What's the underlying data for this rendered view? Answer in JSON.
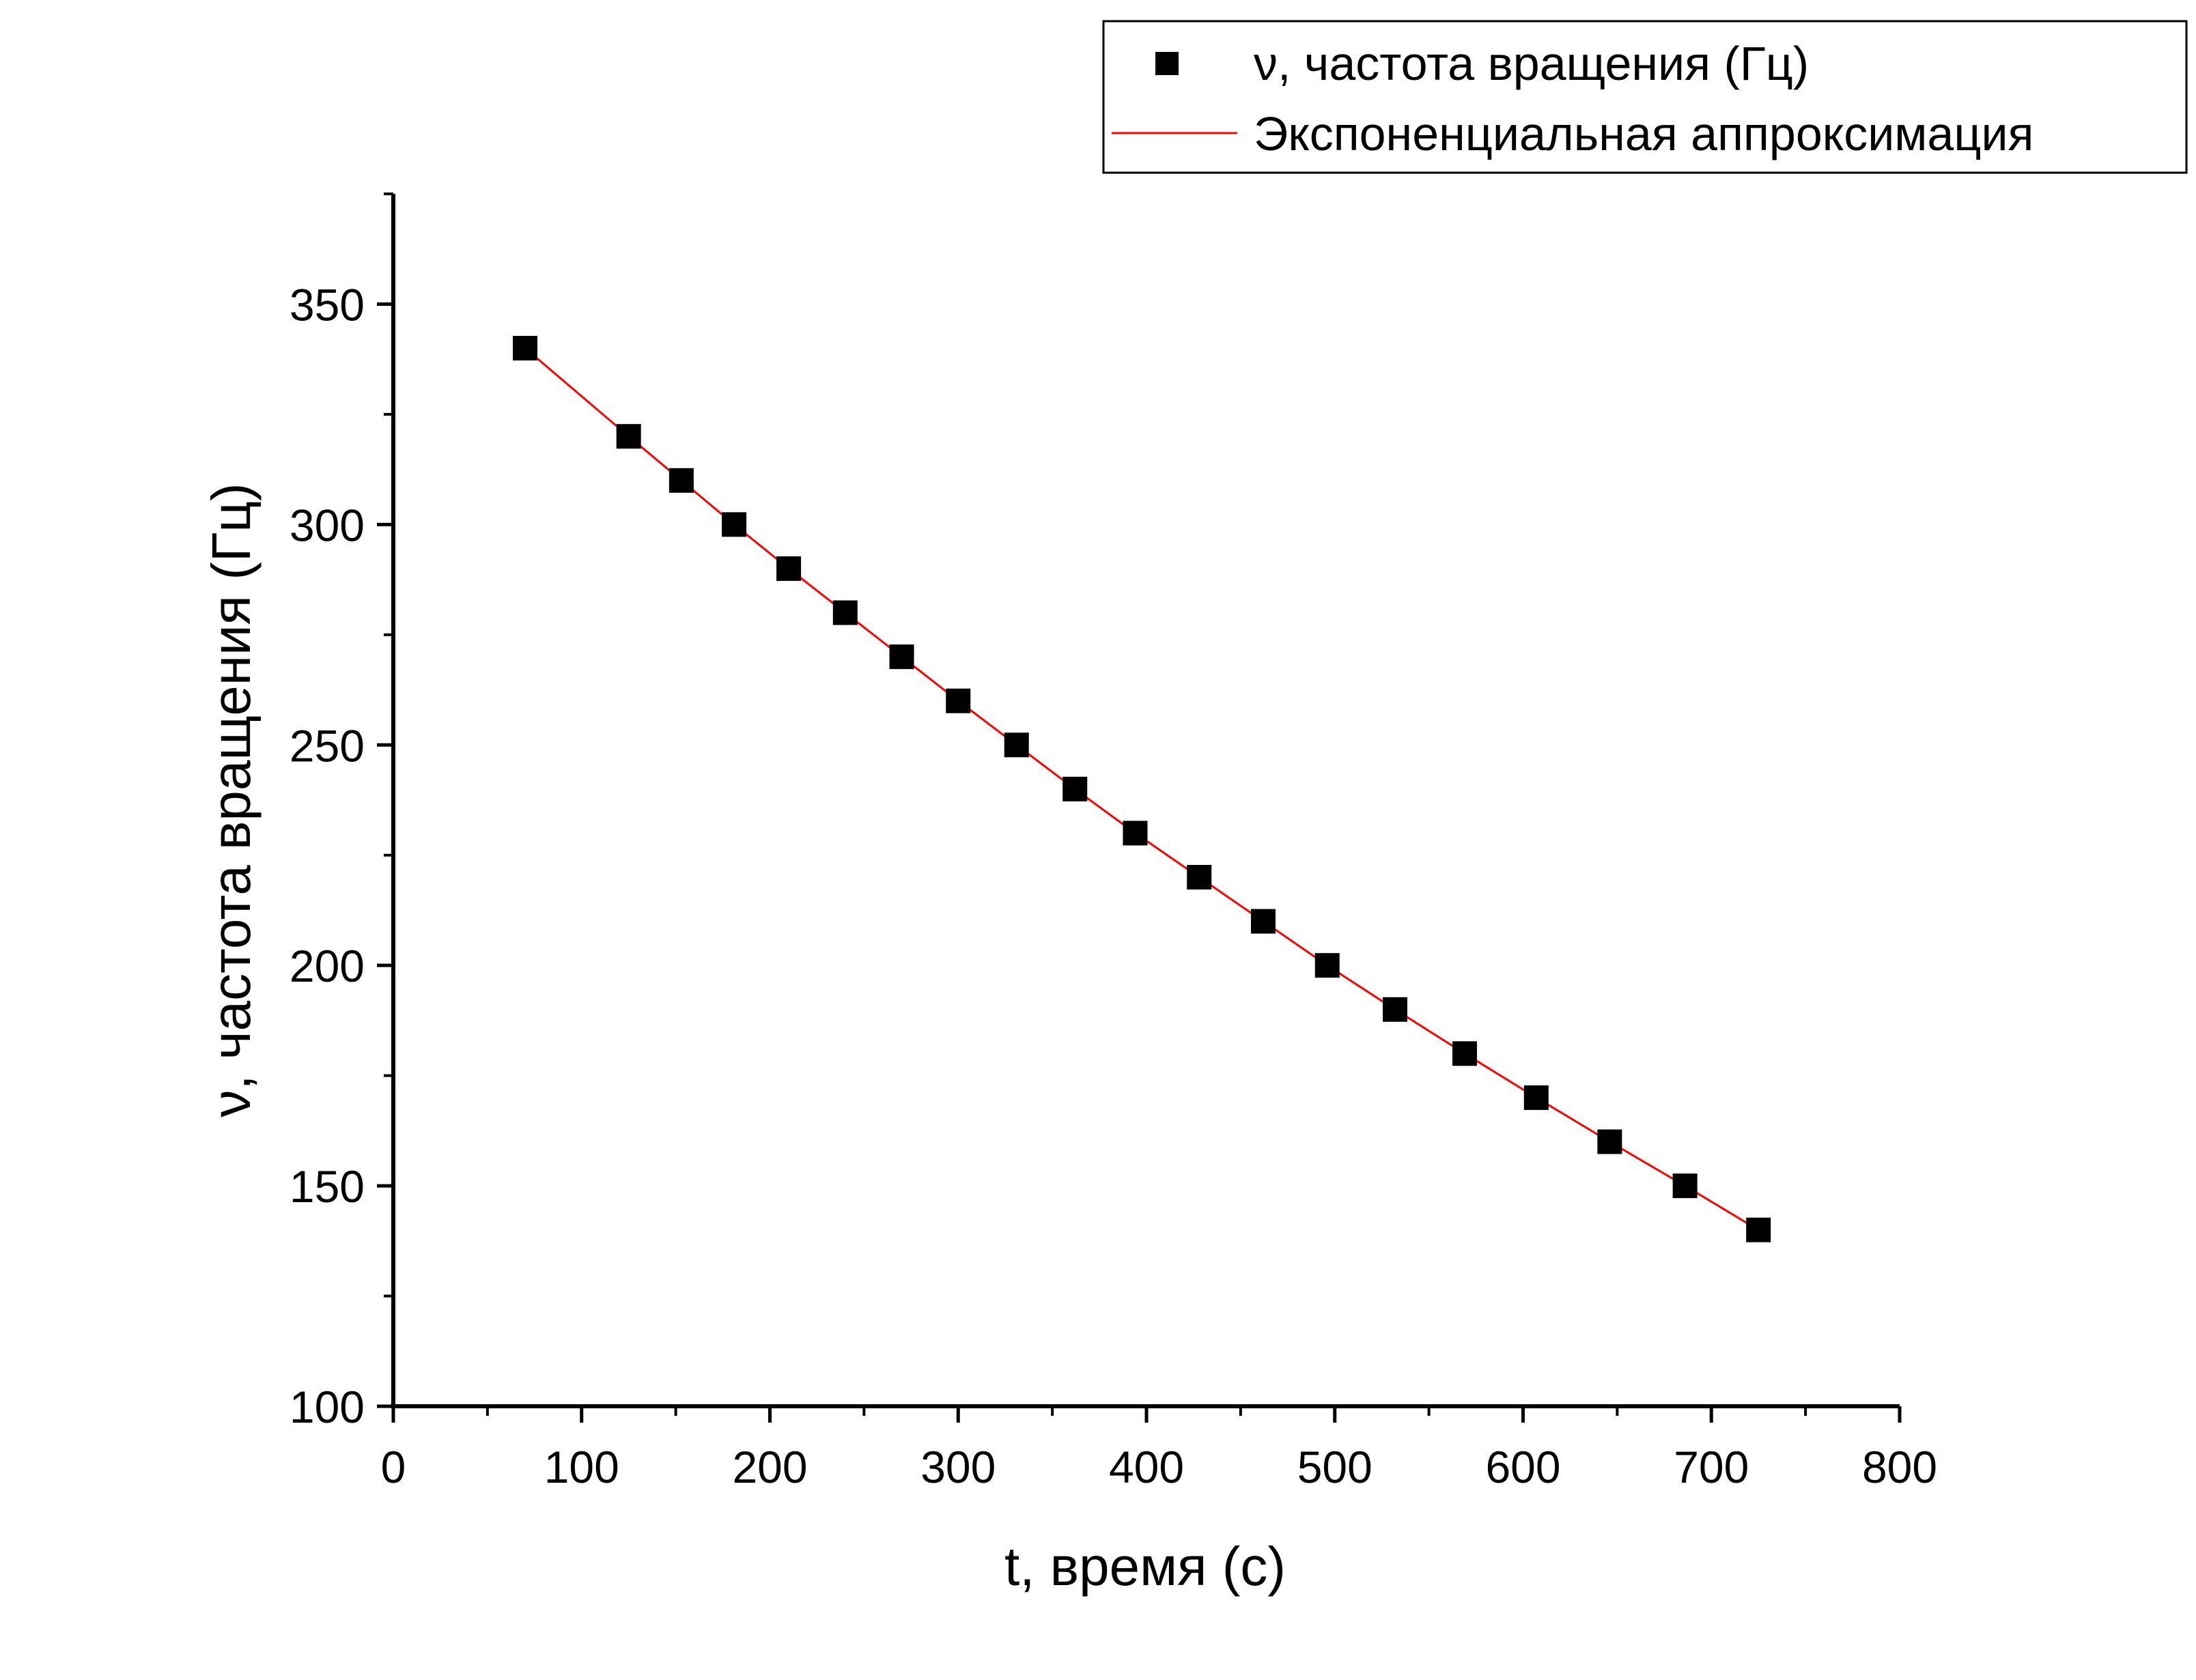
{
  "chart_data": {
    "type": "scatter",
    "title": "",
    "xlabel": "t, время (с)",
    "ylabel": "ν, частота вращения (Гц)",
    "xlim": [
      0,
      800
    ],
    "ylim": [
      100,
      375
    ],
    "xticks": [
      0,
      100,
      200,
      300,
      400,
      500,
      600,
      700,
      800
    ],
    "yticks": [
      100,
      150,
      200,
      250,
      300,
      350
    ],
    "grid": false,
    "legend_position": "top-right",
    "series": [
      {
        "name": "ν, частота вращения (Гц)",
        "kind": "scatter",
        "marker": "square",
        "color": "#000000",
        "x": [
          70,
          125,
          153,
          181,
          210,
          240,
          270,
          300,
          331,
          362,
          394,
          428,
          462,
          496,
          532,
          569,
          607,
          646,
          686,
          725
        ],
        "y": [
          340,
          320,
          310,
          300,
          290,
          280,
          270,
          260,
          250,
          240,
          230,
          220,
          210,
          200,
          190,
          180,
          170,
          160,
          150,
          140
        ]
      },
      {
        "name": "Экспоненциальная аппроксимация",
        "kind": "line",
        "color": "#ff0000",
        "x": [
          70,
          125,
          153,
          181,
          210,
          240,
          270,
          300,
          331,
          362,
          394,
          428,
          462,
          496,
          532,
          569,
          607,
          646,
          686,
          725
        ],
        "y": [
          340,
          320,
          310,
          300,
          290,
          280,
          270,
          260,
          250,
          240,
          230,
          220,
          210,
          200,
          190,
          180,
          170,
          160,
          150,
          140
        ]
      }
    ]
  }
}
